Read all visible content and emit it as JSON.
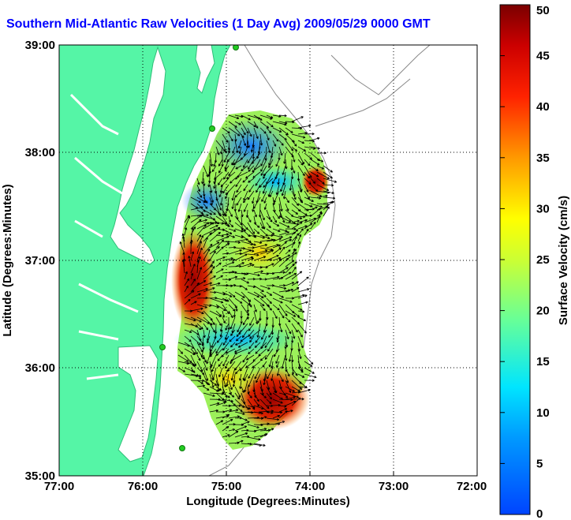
{
  "title": "Southern Mid-Atlantic Raw Velocities (1 Day Avg) 2009/05/29 0000 GMT",
  "x_axis": {
    "label": "Longitude (Degrees:Minutes)",
    "ticks": [
      "77:00",
      "76:00",
      "75:00",
      "74:00",
      "73:00",
      "72:00"
    ]
  },
  "y_axis": {
    "label": "Latitude (Degrees:Minutes)",
    "ticks": [
      "39:00",
      "38:00",
      "37:00",
      "36:00",
      "35:00"
    ]
  },
  "colorbar": {
    "label": "Surface Velocity (cm/s)",
    "ticks": [
      "50",
      "45",
      "40",
      "35",
      "30",
      "25",
      "20",
      "15",
      "10",
      "5",
      "0"
    ],
    "min": 0,
    "max": 50
  },
  "colors": {
    "land": "#55f5a6",
    "water": "#ffffff",
    "title": "#0000ff",
    "stations": "#22cc22"
  }
}
